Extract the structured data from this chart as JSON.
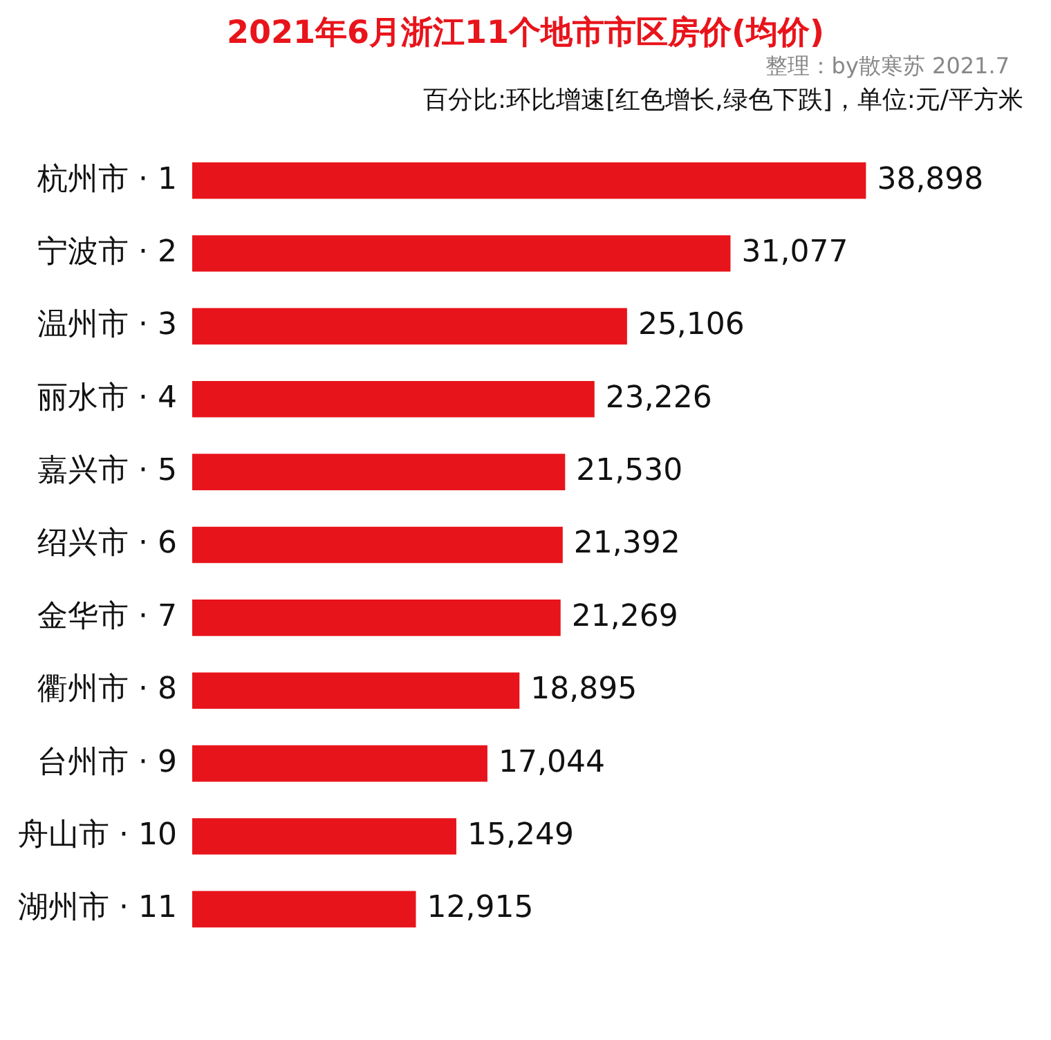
{
  "chart_data": {
    "type": "bar",
    "orientation": "horizontal",
    "title": "2021年6月浙江11个地市市区房价(均价)",
    "subtitle": "整理：by散寒苏 2021.7",
    "annotations": [
      "百分比:环比增速[红色增长,绿色下跌]，单位:元/平方米"
    ],
    "categories": [
      "杭州市 · 1",
      "宁波市 · 2",
      "温州市 · 3",
      "丽水市 · 4",
      "嘉兴市 · 5",
      "绍兴市 · 6",
      "金华市 · 7",
      "衢州市 · 8",
      "台州市 · 9",
      "舟山市 · 10",
      "湖州市 · 11"
    ],
    "values": [
      38898,
      31077,
      25106,
      23226,
      21530,
      21392,
      21269,
      18895,
      17044,
      15249,
      12915
    ],
    "value_labels": [
      "38,898",
      "31,077",
      "25,106",
      "23,226",
      "21,530",
      "21,392",
      "21,269",
      "18,895",
      "17,044",
      "15,249",
      "12,915"
    ],
    "color": "#e8141b",
    "tick_labels": "y"
  }
}
